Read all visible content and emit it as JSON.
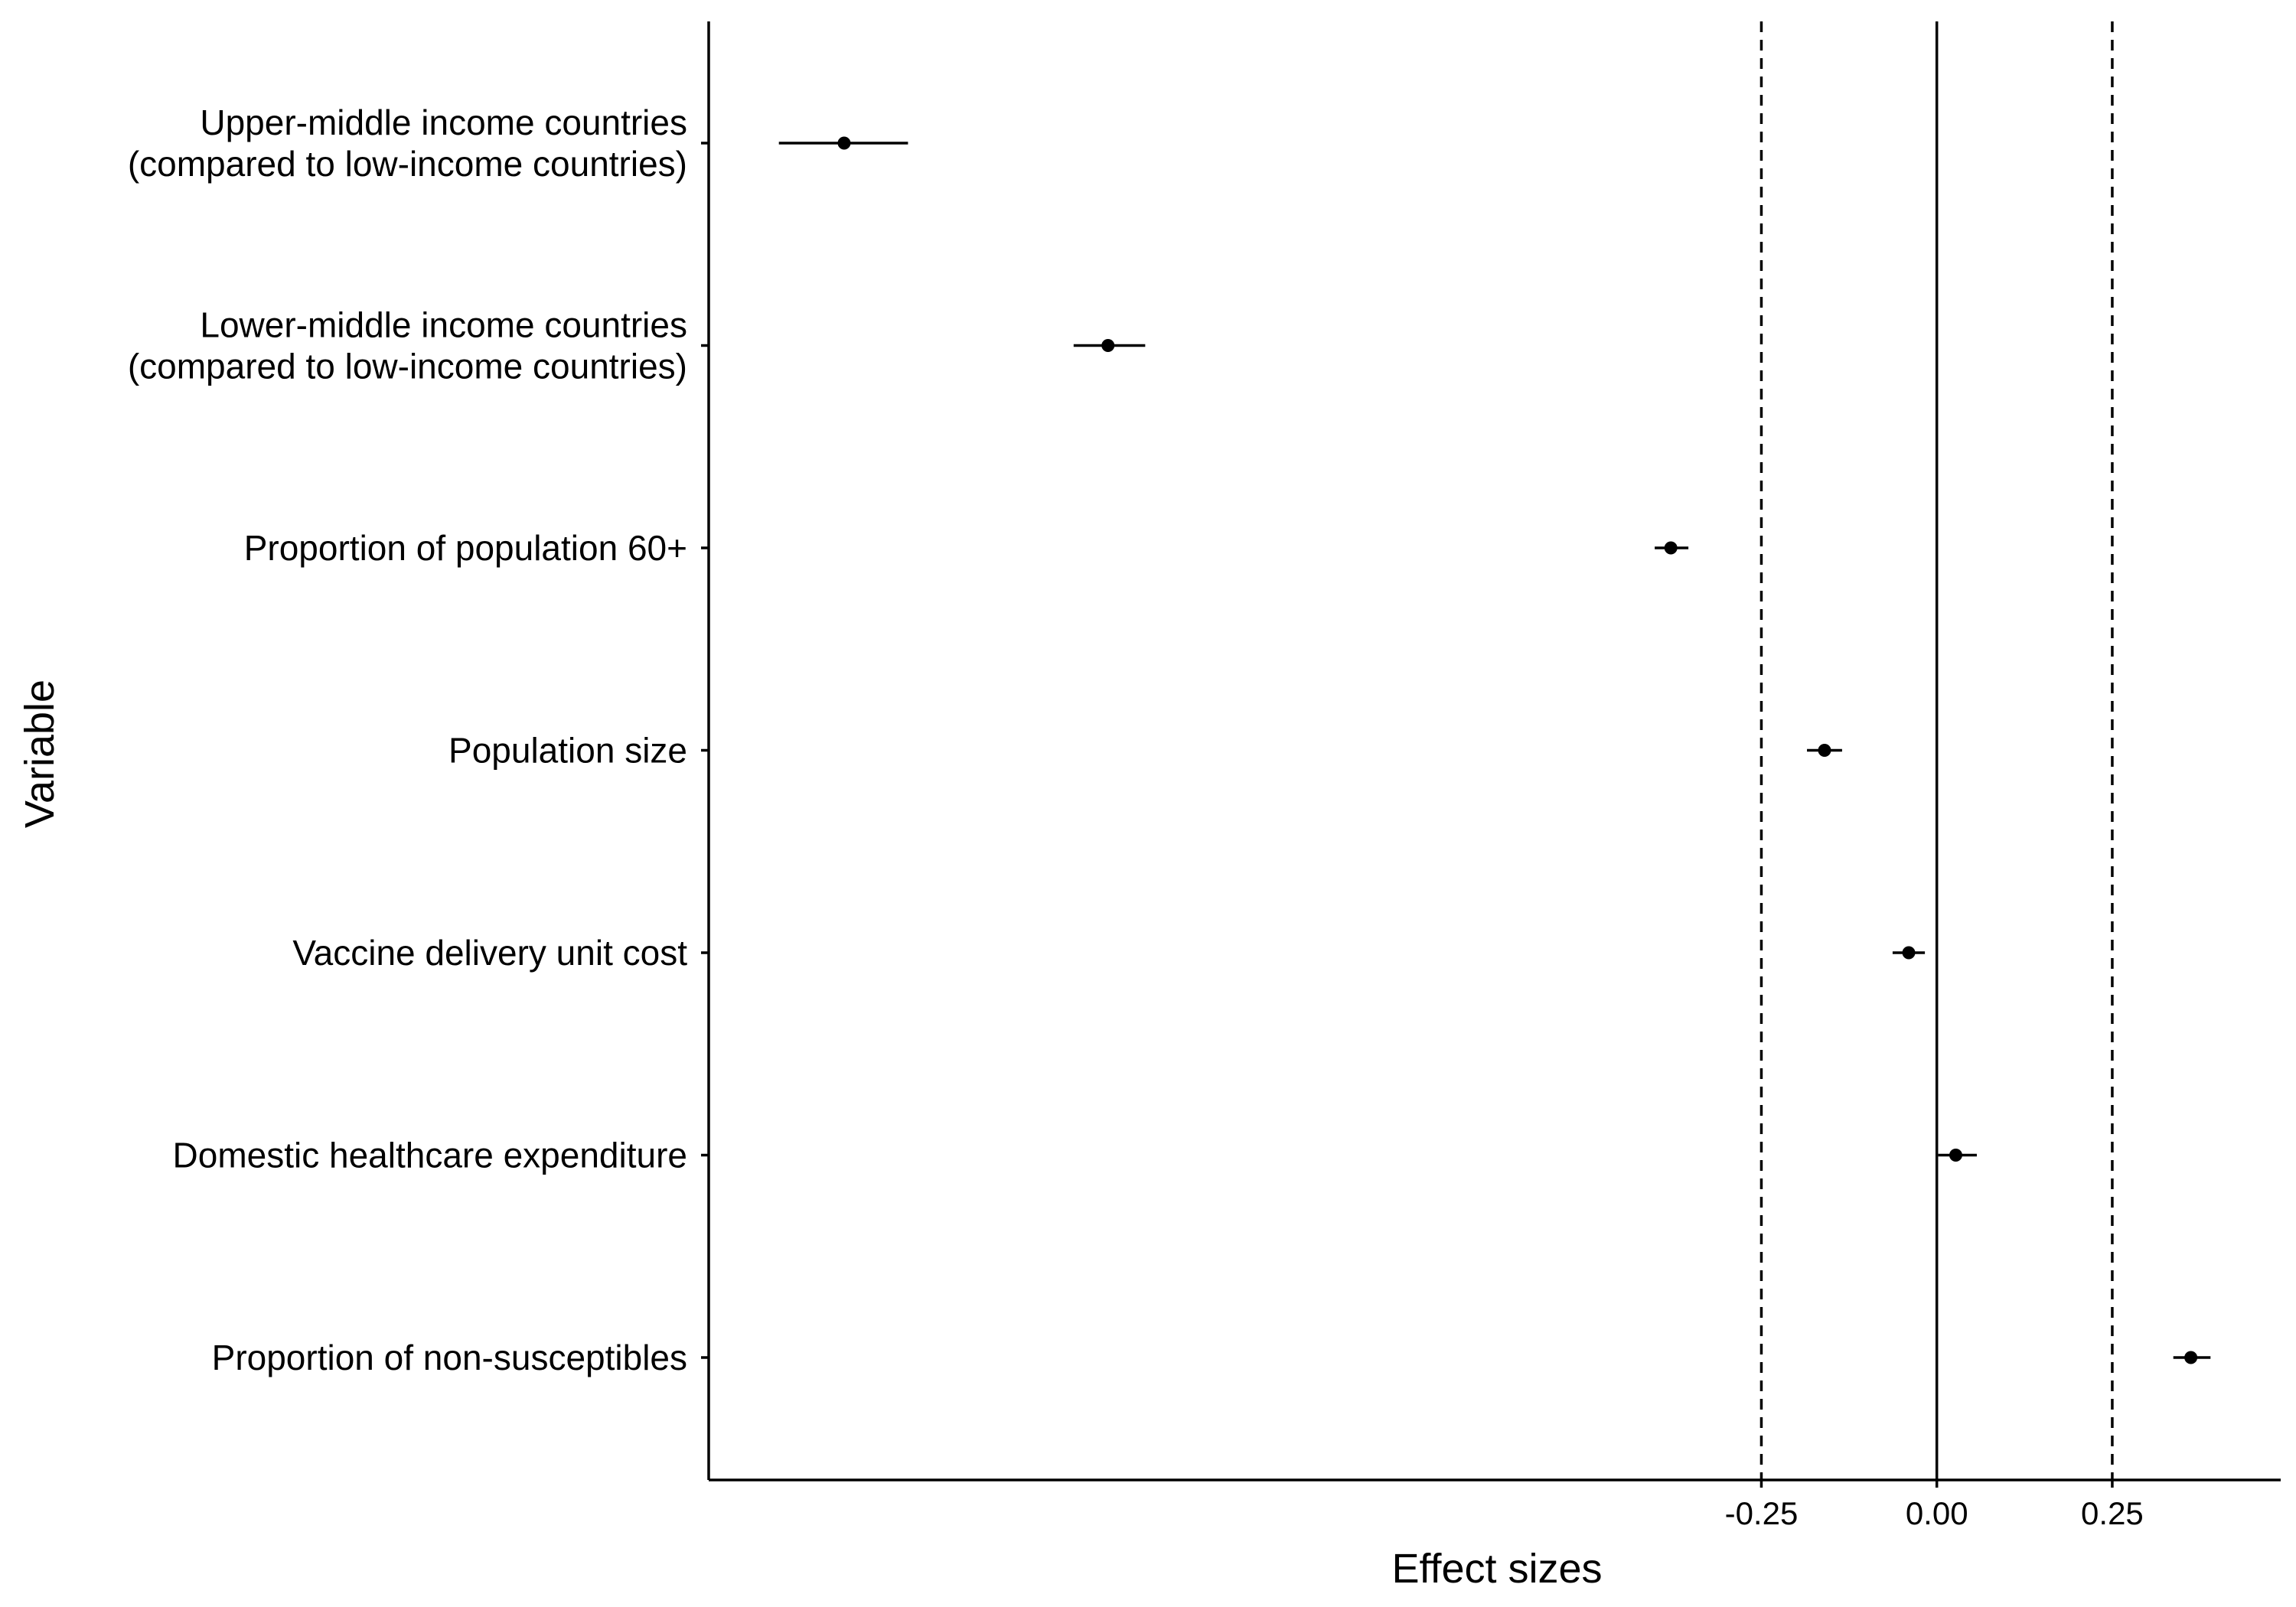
{
  "chart_data": {
    "type": "scatter",
    "subtype": "forest-plot",
    "title": "",
    "xlabel": "Effect sizes",
    "ylabel": "Variable",
    "x_ticks": [
      "-0.25",
      "0.00",
      "0.25"
    ],
    "x_tick_values": [
      -0.25,
      0.0,
      0.25
    ],
    "xlim": [
      -1.75,
      0.49
    ],
    "reference_lines": [
      {
        "x": 0.0,
        "style": "solid"
      },
      {
        "x": -0.25,
        "style": "dashed"
      },
      {
        "x": 0.25,
        "style": "dashed"
      }
    ],
    "grid": false,
    "legend": "none",
    "colors": {
      "points": "#000000",
      "lines": "#000000"
    },
    "series": [
      {
        "categories": [
          [
            "Upper-middle income countries",
            "(compared to low-income countries)"
          ],
          [
            "Lower-middle income countries",
            "(compared to low-income countries)"
          ],
          [
            "Proportion of population 60+"
          ],
          [
            "Population size"
          ],
          [
            "Vaccine delivery unit cost"
          ],
          [
            "Domestic healthcare expenditure"
          ],
          [
            "Proportion of non-susceptibles"
          ]
        ],
        "estimate": [
          -1.557,
          -1.181,
          -0.379,
          -0.16,
          -0.04,
          0.027,
          0.362
        ],
        "ci_low": [
          -1.65,
          -1.23,
          -0.402,
          -0.185,
          -0.063,
          0.002,
          0.337
        ],
        "ci_high": [
          -1.466,
          -1.128,
          -0.354,
          -0.135,
          -0.017,
          0.057,
          0.39
        ]
      }
    ]
  }
}
